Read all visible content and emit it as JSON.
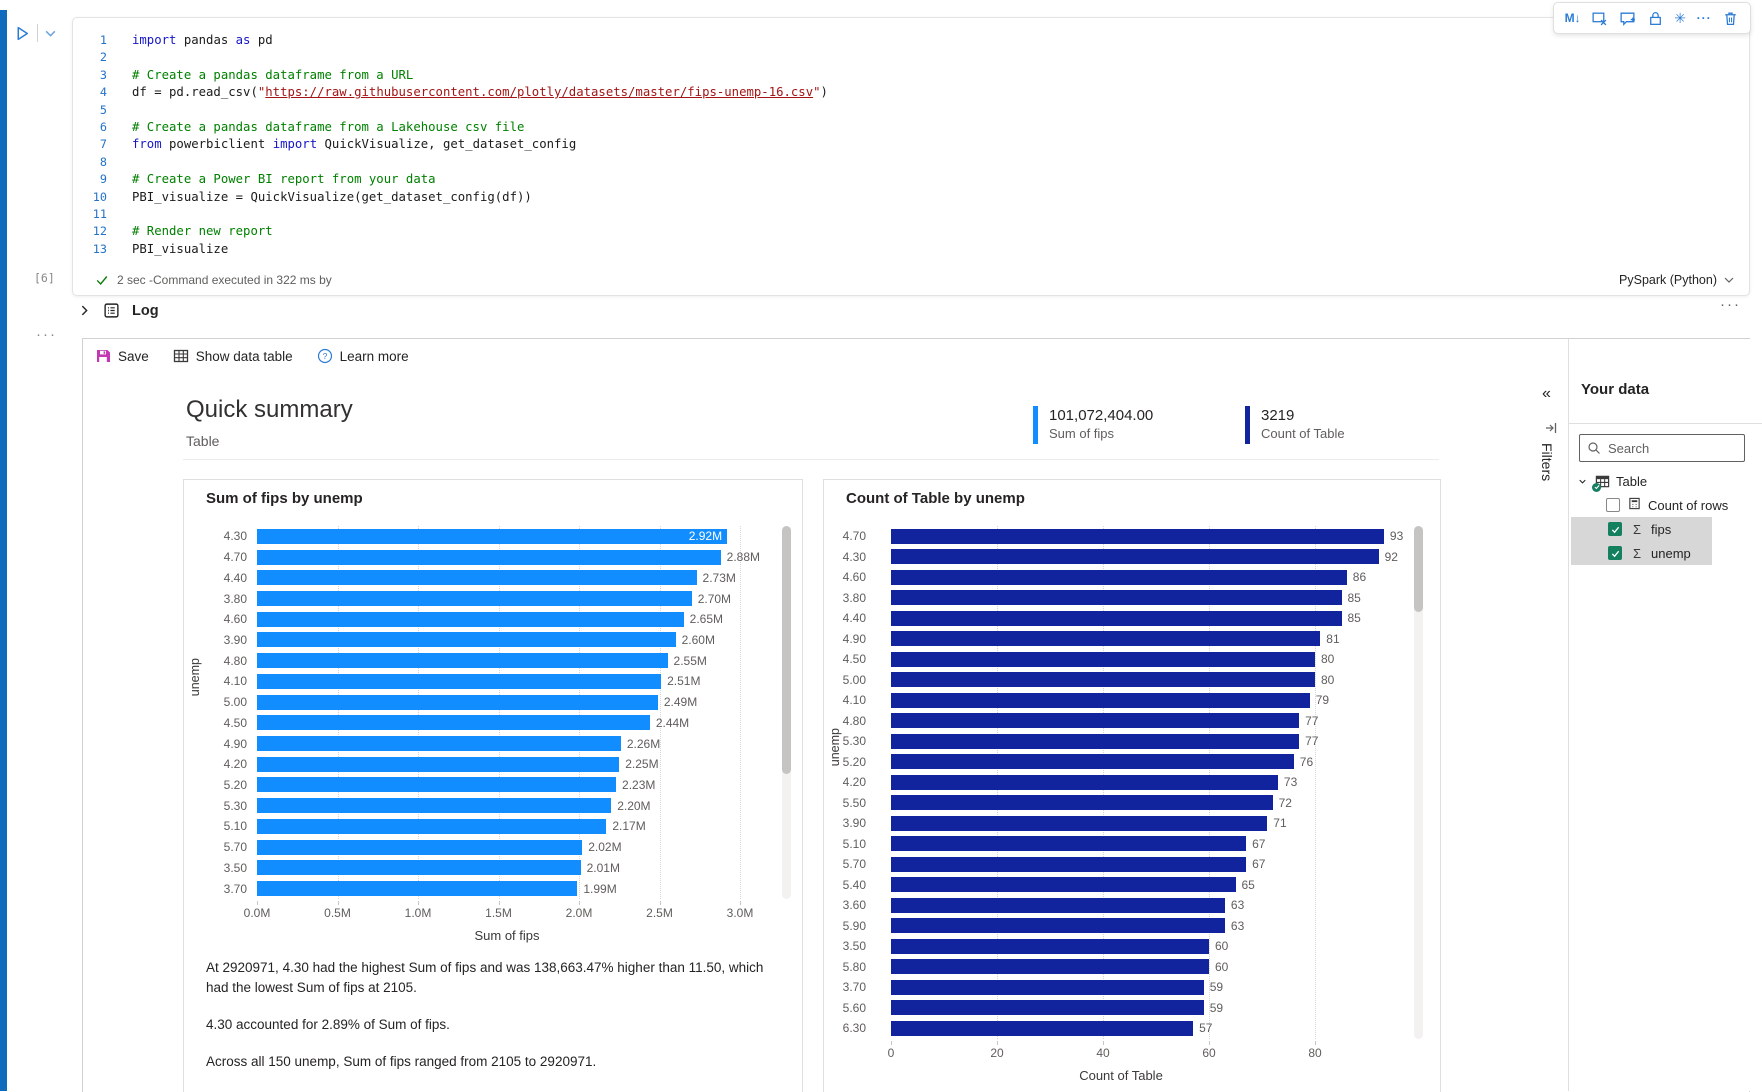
{
  "cell": {
    "toolbar_icons": [
      "markdown-convert-icon",
      "clear-output-icon",
      "add-comment-icon",
      "lock-icon",
      "freeze-icon",
      "more-icon",
      "delete-icon"
    ],
    "markdown_glyph": "M↓",
    "freeze_glyph": "✳",
    "more_glyph": "···",
    "execution_count": "[6]",
    "status": "2 sec -Command executed in 322 ms by",
    "kernel": "PySpark (Python)",
    "code_lines": [
      [
        [
          "kw",
          "import"
        ],
        [
          "pl",
          " pandas "
        ],
        [
          "kw",
          "as"
        ],
        [
          "pl",
          " pd"
        ]
      ],
      [],
      [
        [
          "cm",
          "# Create a pandas dataframe from a URL"
        ]
      ],
      [
        [
          "pl",
          "df = pd.read_csv("
        ],
        [
          "st",
          "\""
        ],
        [
          "ln",
          "https://raw.githubusercontent.com/plotly/datasets/master/fips-unemp-16.csv"
        ],
        [
          "st",
          "\""
        ],
        [
          "pl",
          ")"
        ]
      ],
      [],
      [
        [
          "cm",
          "# Create a pandas dataframe from a Lakehouse csv file"
        ]
      ],
      [
        [
          "kw",
          "from"
        ],
        [
          "pl",
          " powerbiclient "
        ],
        [
          "kw",
          "import"
        ],
        [
          "pl",
          " QuickVisualize, get_dataset_config"
        ]
      ],
      [],
      [
        [
          "cm",
          "# Create a Power BI report from your data"
        ]
      ],
      [
        [
          "pl",
          "PBI_visualize = QuickVisualize(get_dataset_config(df))"
        ]
      ],
      [],
      [
        [
          "cm",
          "# Render new report"
        ]
      ],
      [
        [
          "pl",
          "PBI_visualize"
        ]
      ]
    ]
  },
  "log": {
    "label": "Log",
    "more_glyph": "···",
    "output_handle_glyph": "···"
  },
  "visual": {
    "toolbar": {
      "save": "Save",
      "show_data_table": "Show data table",
      "learn_more": "Learn more"
    },
    "header": {
      "title": "Quick summary",
      "subtitle": "Table"
    },
    "stats": [
      {
        "value": "101,072,404.00",
        "label": "Sum of fips",
        "color": "#118DFF"
      },
      {
        "value": "3219",
        "label": "Count of Table",
        "color": "#12239E"
      }
    ],
    "insights": [
      "At 2920971, 4.30 had the highest Sum of fips and was 138,663.47% higher than 11.50, which had the lowest Sum of fips at 2105.",
      "4.30 accounted for 2.89% of Sum of fips.",
      "Across all 150 unemp, Sum of fips ranged from 2105 to 2920971."
    ]
  },
  "chart_data": [
    {
      "type": "bar",
      "orientation": "horizontal",
      "title": "Sum of fips by unemp",
      "xlabel": "Sum of fips",
      "ylabel": "unemp",
      "color": "#118DFF",
      "categories": [
        "4.30",
        "4.70",
        "4.40",
        "3.80",
        "4.60",
        "3.90",
        "4.80",
        "4.10",
        "5.00",
        "4.50",
        "4.90",
        "4.20",
        "5.20",
        "5.30",
        "5.10",
        "5.70",
        "3.50",
        "3.70"
      ],
      "values": [
        2.92,
        2.88,
        2.73,
        2.7,
        2.65,
        2.6,
        2.55,
        2.51,
        2.49,
        2.44,
        2.26,
        2.25,
        2.23,
        2.2,
        2.17,
        2.02,
        2.01,
        1.99
      ],
      "value_labels": [
        "2.92M",
        "2.88M",
        "2.73M",
        "2.70M",
        "2.65M",
        "2.60M",
        "2.55M",
        "2.51M",
        "2.49M",
        "2.44M",
        "2.26M",
        "2.25M",
        "2.23M",
        "2.20M",
        "2.17M",
        "2.02M",
        "2.01M",
        "1.99M"
      ],
      "x_ticks": {
        "values": [
          0,
          0.5,
          1,
          1.5,
          2,
          2.5,
          3
        ],
        "labels": [
          "0.0M",
          "0.5M",
          "1.0M",
          "1.5M",
          "2.0M",
          "2.5M",
          "3.0M"
        ]
      },
      "xlim": [
        0,
        3.1
      ],
      "grid": "dotted-vertical",
      "legend": "none",
      "scrollable": true,
      "first_label_inside": true
    },
    {
      "type": "bar",
      "orientation": "horizontal",
      "title": "Count of Table by unemp",
      "xlabel": "Count of Table",
      "ylabel": "unemp",
      "color": "#12239E",
      "categories": [
        "4.70",
        "4.30",
        "4.60",
        "3.80",
        "4.40",
        "4.90",
        "4.50",
        "5.00",
        "4.10",
        "4.80",
        "5.30",
        "5.20",
        "4.20",
        "5.50",
        "3.90",
        "5.10",
        "5.70",
        "5.40",
        "3.60",
        "5.90",
        "3.50",
        "5.80",
        "3.70",
        "5.60",
        "6.30"
      ],
      "values": [
        93,
        92,
        86,
        85,
        85,
        81,
        80,
        80,
        79,
        77,
        77,
        76,
        73,
        72,
        71,
        67,
        67,
        65,
        63,
        63,
        60,
        60,
        59,
        59,
        57
      ],
      "value_labels": [
        "93",
        "92",
        "86",
        "85",
        "85",
        "81",
        "80",
        "80",
        "79",
        "77",
        "77",
        "76",
        "73",
        "72",
        "71",
        "67",
        "67",
        "65",
        "63",
        "63",
        "60",
        "60",
        "59",
        "59",
        "57"
      ],
      "x_ticks": {
        "values": [
          0,
          20,
          40,
          60,
          80
        ],
        "labels": [
          "0",
          "20",
          "40",
          "60",
          "80"
        ]
      },
      "xlim": [
        0,
        97
      ],
      "grid": "dotted-vertical",
      "legend": "none",
      "scrollable": true,
      "first_label_inside": false
    }
  ],
  "your_data": {
    "title": "Your data",
    "search_placeholder": "Search",
    "filters_label": "Filters",
    "collapse_glyph": "«",
    "table": {
      "name": "Table",
      "fields": [
        {
          "label": "Count of rows",
          "checked": false,
          "icon": "calculator-icon",
          "highlight": false
        },
        {
          "label": "fips",
          "checked": true,
          "icon": "sigma-icon",
          "highlight": true
        },
        {
          "label": "unemp",
          "checked": true,
          "icon": "sigma-icon",
          "highlight": true
        }
      ]
    }
  }
}
